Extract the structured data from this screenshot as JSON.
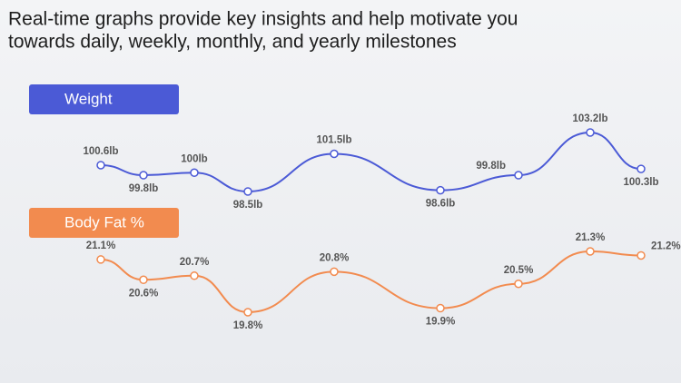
{
  "headline": [
    "Real-time graphs provide key insights and help motivate you",
    "towards daily, weekly, monthly, and yearly milestones"
  ],
  "chart_data": [
    {
      "type": "line",
      "title": "Weight",
      "color": "#4b5ad6",
      "values": [
        100.6,
        99.8,
        100,
        98.5,
        101.5,
        98.6,
        99.8,
        103.2,
        100.3
      ],
      "value_labels": [
        "100.6lb",
        "99.8lb",
        "100lb",
        "98.5lb",
        "101.5lb",
        "98.6lb",
        "99.8lb",
        "103.2lb",
        "100.3lb"
      ]
    },
    {
      "type": "line",
      "title": "Body Fat %",
      "color": "#f28b4f",
      "values": [
        21.1,
        20.6,
        20.7,
        19.8,
        20.8,
        19.9,
        20.5,
        21.3,
        21.2
      ],
      "value_labels": [
        "21.1%",
        "20.6%",
        "20.7%",
        "19.8%",
        "20.8%",
        "19.9%",
        "20.5%",
        "21.3%",
        "21.2%"
      ]
    }
  ]
}
